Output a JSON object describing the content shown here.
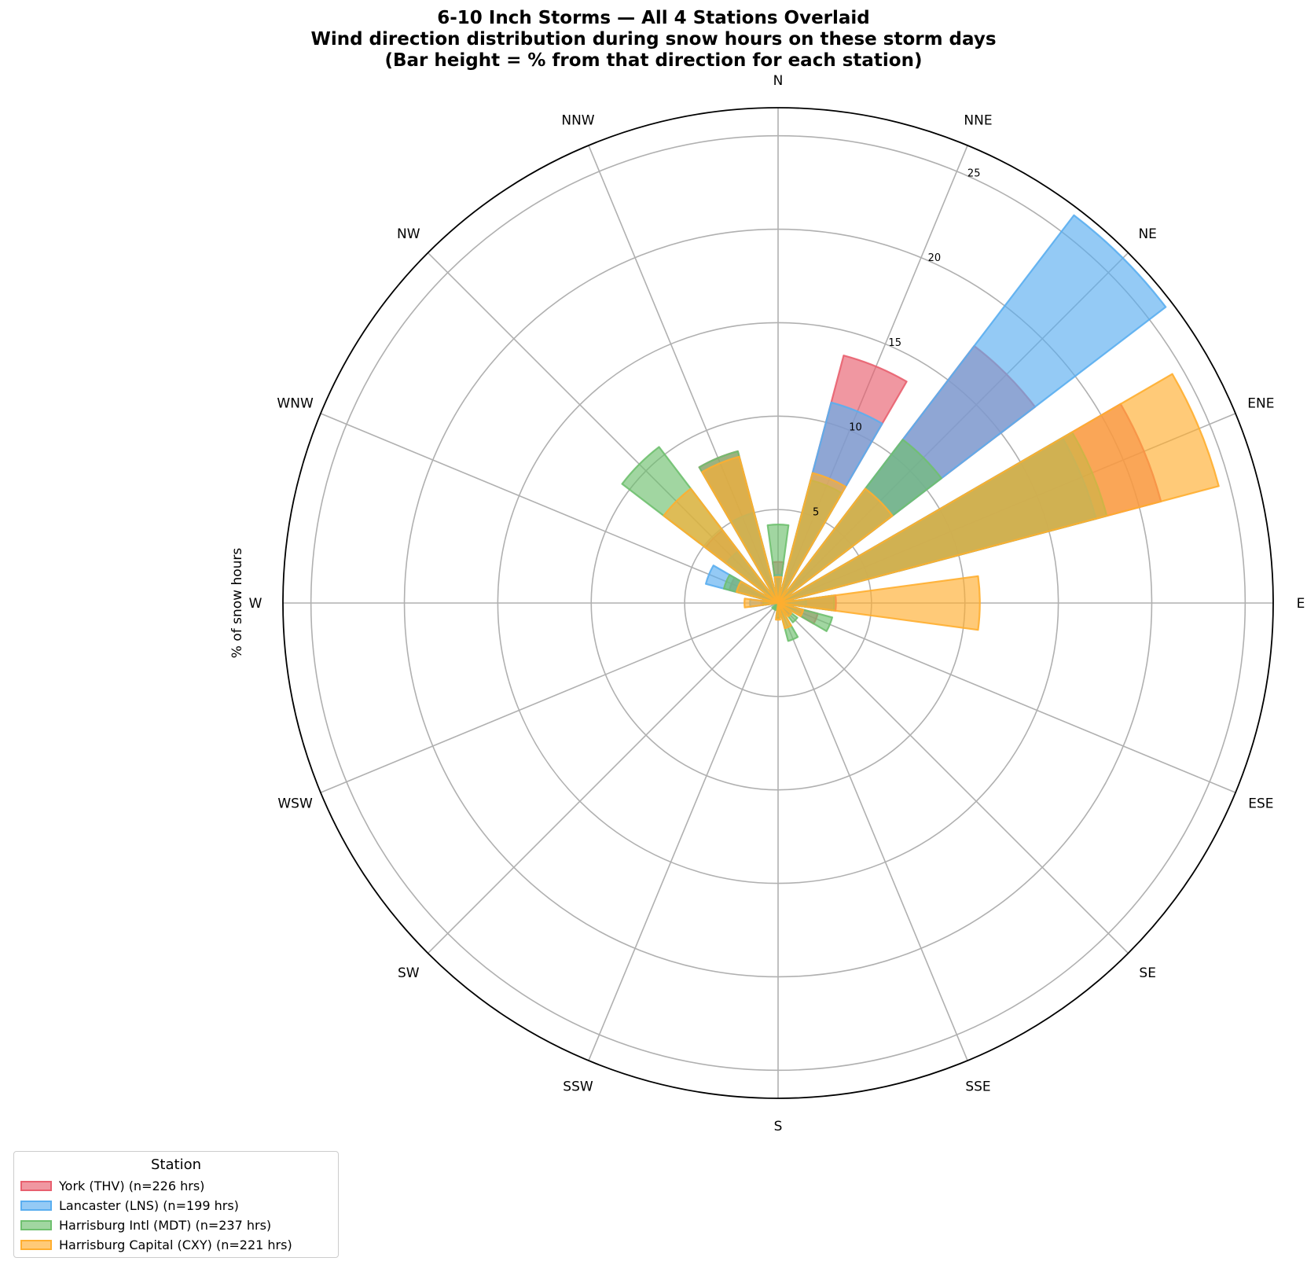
{
  "chart_data": {
    "type": "polar-bar",
    "title": [
      "6-10 Inch Storms — All 4 Stations Overlaid",
      "Wind direction distribution during snow hours on these storm days",
      "(Bar height = % from that direction for each station)"
    ],
    "ylabel": "% of snow hours",
    "directions": [
      "N",
      "NNE",
      "NE",
      "ENE",
      "E",
      "ESE",
      "SE",
      "SSE",
      "S",
      "SSW",
      "SW",
      "WSW",
      "W",
      "WNW",
      "NW",
      "NNW"
    ],
    "radial_ticks": [
      "5",
      "10",
      "15",
      "20",
      "25"
    ],
    "rmax": 26.5,
    "grid": true,
    "legend": {
      "title": "Station",
      "placement": "bottom-left"
    },
    "series": [
      {
        "name": "York (THV) (n=226 hrs)",
        "color": "#e8606f",
        "values": [
          2.2,
          13.7,
          17.3,
          21.2,
          3.1,
          2.2,
          0.9,
          0.4,
          0.4,
          0,
          0,
          0,
          0.9,
          2.7,
          4.9,
          8.4
        ]
      },
      {
        "name": "Lancaster (LNS) (n=199 hrs)",
        "color": "#5aaef0",
        "values": [
          1.5,
          11.1,
          26.1,
          17.6,
          1.5,
          1.0,
          0.5,
          0.5,
          0,
          0,
          0,
          0,
          1.5,
          4.0,
          3.5,
          5.0
        ]
      },
      {
        "name": "Harrisburg Intl (MDT) (n=237 hrs)",
        "color": "#6fc06f",
        "values": [
          4.2,
          6.8,
          11.0,
          18.2,
          3.0,
          3.0,
          1.3,
          2.1,
          0.8,
          0.4,
          0.4,
          0,
          0.8,
          3.0,
          10.5,
          8.4
        ]
      },
      {
        "name": "Harrisburg Capital (CXY) (n=221 hrs)",
        "color": "#ffae2f",
        "values": [
          1.4,
          7.2,
          7.7,
          24.4,
          10.8,
          1.4,
          0.9,
          1.4,
          0.9,
          0,
          0,
          0,
          1.8,
          2.3,
          7.7,
          8.1
        ]
      }
    ]
  }
}
